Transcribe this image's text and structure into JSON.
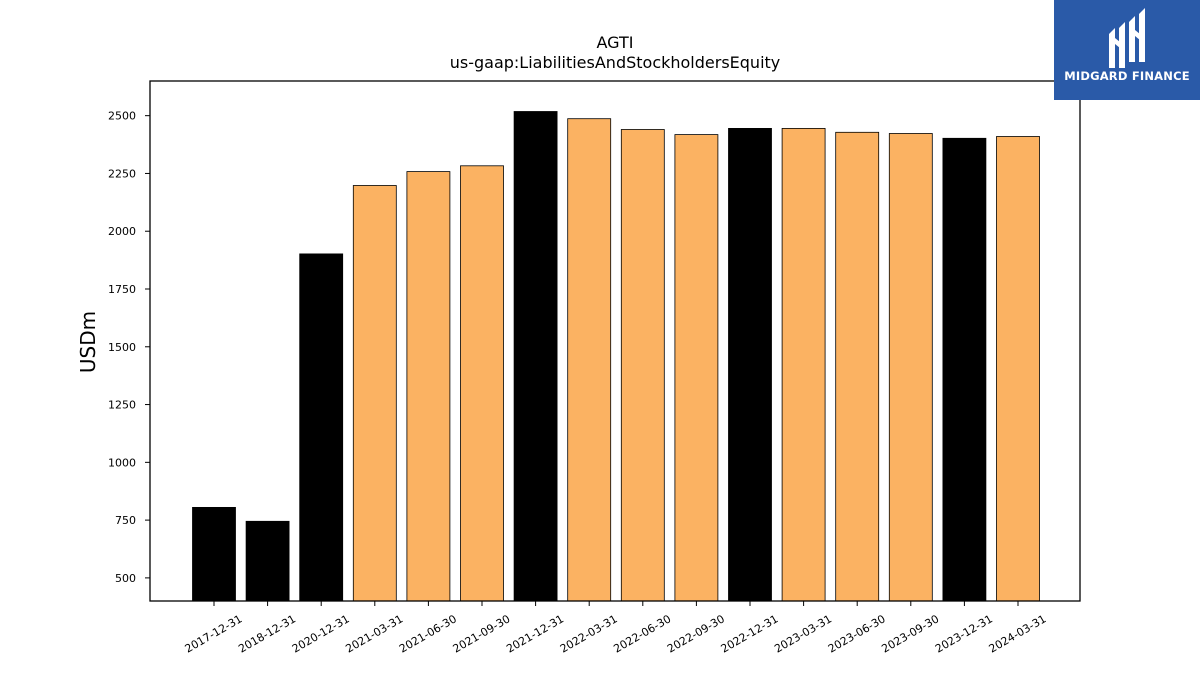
{
  "brand": {
    "name": "MIDGARD FINANCE",
    "colors": {
      "logo_bg": "#2a5aa8",
      "logo_fg": "#ffffff"
    },
    "icon": "midgard-monogram-icon"
  },
  "chart_data": {
    "type": "bar",
    "title": "AGTI",
    "subtitle": "us-gaap:LiabilitiesAndStockholdersEquity",
    "xlabel": "",
    "ylabel": "USDm",
    "ylim": [
      400,
      2650
    ],
    "yticks": [
      500,
      750,
      1000,
      1250,
      1500,
      1750,
      2000,
      2250,
      2500
    ],
    "grid": false,
    "categories": [
      "2017-12-31",
      "2018-12-31",
      "2020-12-31",
      "2021-03-31",
      "2021-06-30",
      "2021-09-30",
      "2021-12-31",
      "2022-03-31",
      "2022-06-30",
      "2022-09-30",
      "2022-12-31",
      "2023-03-31",
      "2023-06-30",
      "2023-09-30",
      "2023-12-31",
      "2024-03-31"
    ],
    "values": [
      805,
      745,
      1902,
      2198,
      2258,
      2283,
      2518,
      2487,
      2440,
      2418,
      2445,
      2445,
      2428,
      2423,
      2402,
      2410
    ],
    "period_type": [
      "annual",
      "annual",
      "annual",
      "quarterly",
      "quarterly",
      "quarterly",
      "annual",
      "quarterly",
      "quarterly",
      "quarterly",
      "annual",
      "quarterly",
      "quarterly",
      "quarterly",
      "annual",
      "quarterly"
    ],
    "colors": {
      "annual": "#000000",
      "quarterly": "#fbb262",
      "edge": "#000000"
    }
  }
}
